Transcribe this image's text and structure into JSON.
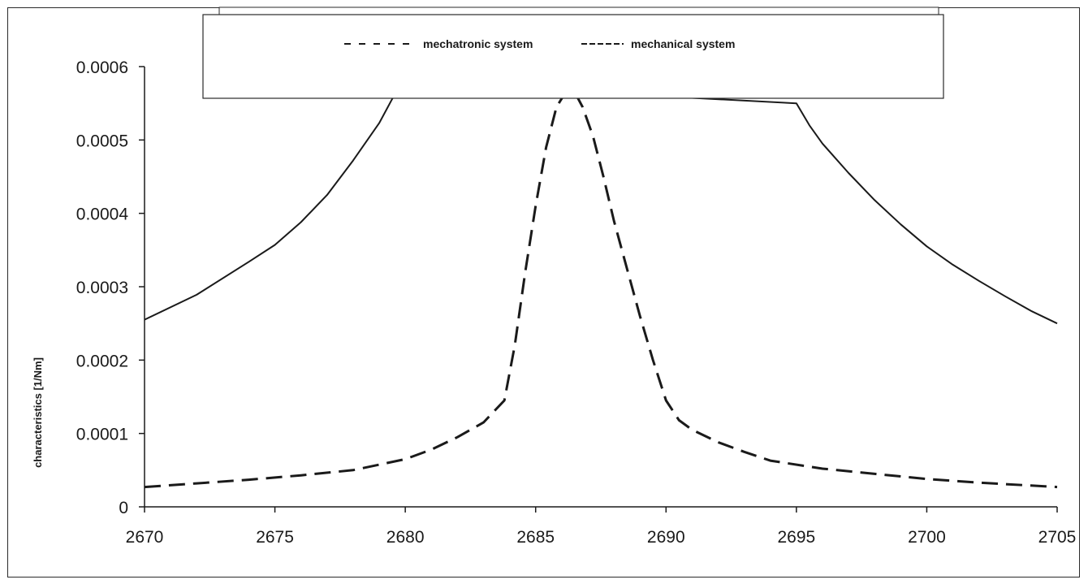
{
  "chart_data": {
    "type": "line",
    "title": "",
    "xlabel": "",
    "ylabel": "characteristics [1/Nm]",
    "xlim": [
      2670,
      2705
    ],
    "ylim": [
      0,
      0.0006
    ],
    "x_ticks": [
      "2670",
      "2675",
      "2680",
      "2685",
      "2690",
      "2695",
      "2700",
      "2705"
    ],
    "y_ticks": [
      "0",
      "0.0001",
      "0.0002",
      "0.0003",
      "0.0004",
      "0.0005",
      "0.0006"
    ],
    "grid": false,
    "legend_position": "top-center",
    "series": [
      {
        "name": "mechatronic system",
        "style": "dashed",
        "x": [
          2670,
          2672,
          2674,
          2676,
          2678,
          2680,
          2681,
          2682,
          2683,
          2683.8,
          2684.2,
          2684.6,
          2685,
          2685.4,
          2685.8,
          2686.2,
          2686.5,
          2686.8,
          2687.2,
          2687.6,
          2688,
          2688.5,
          2689,
          2689.5,
          2690,
          2690.5,
          2691,
          2692,
          2693,
          2694,
          2696,
          2698,
          2700,
          2702,
          2704,
          2705
        ],
        "y": [
          2.7e-05,
          3.2e-05,
          3.7e-05,
          4.3e-05,
          5e-05,
          6.5e-05,
          7.8e-05,
          9.5e-05,
          0.000115,
          0.000145,
          0.00022,
          0.00032,
          0.00041,
          0.00049,
          0.000545,
          0.000568,
          0.000565,
          0.000545,
          0.000505,
          0.00045,
          0.00039,
          0.000325,
          0.00026,
          0.0002,
          0.000145,
          0.000118,
          0.000105,
          8.8e-05,
          7.5e-05,
          6.3e-05,
          5.2e-05,
          4.5e-05,
          3.8e-05,
          3.3e-05,
          2.9e-05,
          2.7e-05
        ]
      },
      {
        "name": "mechanical system",
        "style": "solid",
        "x": [
          2670,
          2672,
          2674,
          2675,
          2676,
          2677,
          2678,
          2679,
          2679.5,
          2679.9,
          2695,
          2695.5,
          2696,
          2697,
          2698,
          2699,
          2700,
          2701,
          2702,
          2703,
          2704,
          2705
        ],
        "y": [
          0.000255,
          0.000289,
          0.000334,
          0.000357,
          0.000388,
          0.000425,
          0.000472,
          0.000523,
          0.000556,
          0.000578,
          0.00055,
          0.00052,
          0.000495,
          0.000455,
          0.000418,
          0.000385,
          0.000355,
          0.00033,
          0.000308,
          0.000287,
          0.000267,
          0.00025
        ]
      }
    ]
  }
}
